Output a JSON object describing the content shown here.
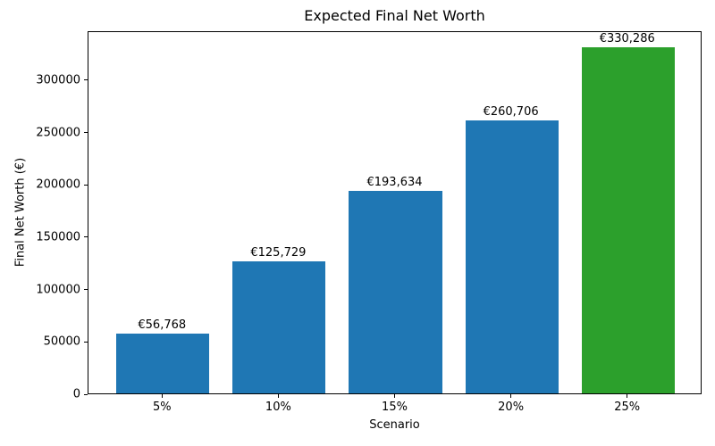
{
  "chart_data": {
    "type": "bar",
    "title": "Expected Final Net Worth",
    "xlabel": "Scenario",
    "ylabel": "Final Net Worth (€)",
    "categories": [
      "5%",
      "10%",
      "15%",
      "20%",
      "25%"
    ],
    "values": [
      56768,
      125729,
      193634,
      260706,
      330286
    ],
    "bar_labels": [
      "€56,768",
      "€125,729",
      "€193,634",
      "€260,706",
      "€330,286"
    ],
    "bar_colors": [
      "#1f77b4",
      "#1f77b4",
      "#1f77b4",
      "#1f77b4",
      "#2ca02c"
    ],
    "yticks": [
      0,
      50000,
      100000,
      150000,
      200000,
      250000,
      300000
    ],
    "ylim": [
      0,
      346800
    ],
    "xlim": [
      -0.64,
      4.64
    ],
    "bar_width": 0.8,
    "grid": false,
    "legend_position": "none",
    "spine_color": "#000000",
    "background_color": "#ffffff"
  }
}
